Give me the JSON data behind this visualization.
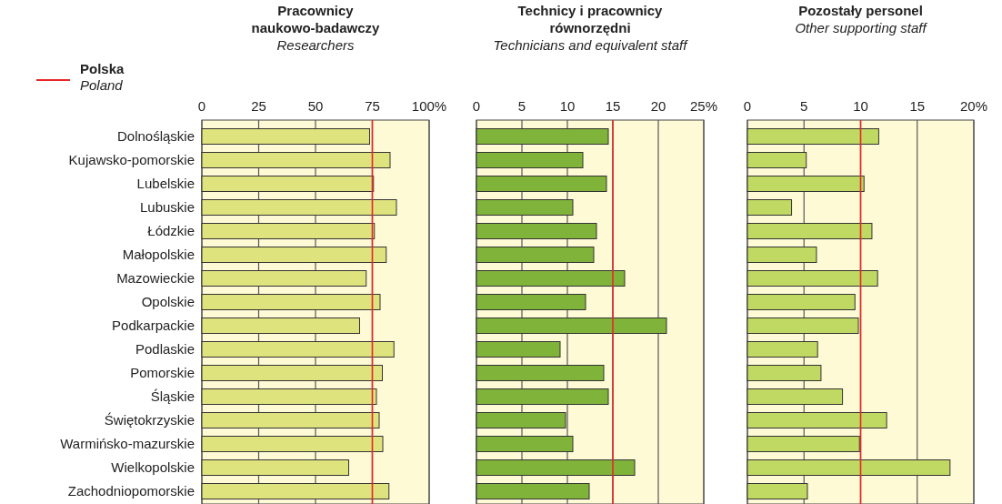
{
  "chart_data": [
    {
      "type": "bar",
      "orientation": "horizontal",
      "title": "Pracownicy naukowo-badawczy",
      "subtitle": "Researchers",
      "categories": [
        "Dolnośląskie",
        "Kujawsko-pomorskie",
        "Lubelskie",
        "Lubuskie",
        "Łódzkie",
        "Małopolskie",
        "Mazowieckie",
        "Opolskie",
        "Podkarpackie",
        "Podlaskie",
        "Pomorskie",
        "Śląskie",
        "Świętokrzyskie",
        "Warmińsko-mazurskie",
        "Wielkopolskie",
        "Zachodniopomorskie"
      ],
      "values": [
        73.8,
        82.8,
        75.5,
        85.6,
        75.9,
        81.1,
        72.3,
        78.4,
        69.4,
        84.5,
        79.4,
        76.8,
        78.0,
        79.6,
        64.6,
        82.3
      ],
      "color": "#dfe37e",
      "xlim": [
        0,
        100
      ],
      "xticks": [
        0,
        25,
        50,
        75,
        {
          "value": 100,
          "label": "100%"
        }
      ],
      "grid": "x",
      "ref_lines": [
        {
          "axis": "x",
          "value": 75,
          "label": "Polska\nPoland",
          "color": "#e8262a"
        }
      ],
      "legend": "top left"
    },
    {
      "type": "bar",
      "orientation": "horizontal",
      "title": "Technicy i pracownicy równorzędni",
      "subtitle": "Technicians and equivalent staff",
      "categories": [
        "Dolnośląskie",
        "Kujawsko-pomorskie",
        "Lubelskie",
        "Lubuskie",
        "Łódzkie",
        "Małopolskie",
        "Mazowieckie",
        "Opolskie",
        "Podkarpackie",
        "Podlaskie",
        "Pomorskie",
        "Śląskie",
        "Świętokrzyskie",
        "Warmińsko-mazurskie",
        "Wielkopolskie",
        "Zachodniopomorskie"
      ],
      "values": [
        14.5,
        11.7,
        14.3,
        10.6,
        13.2,
        12.9,
        16.3,
        12.0,
        20.9,
        9.2,
        14.0,
        14.5,
        9.8,
        10.6,
        17.4,
        12.4
      ],
      "color": "#80b33a",
      "xlim": [
        0,
        25
      ],
      "xticks": [
        0,
        5,
        10,
        15,
        20,
        {
          "value": 25,
          "label": "25%"
        }
      ],
      "grid": "x",
      "tick_labels": "x",
      "ref_lines": [
        {
          "axis": "x",
          "value": 15,
          "color": "#e8262a"
        }
      ]
    },
    {
      "type": "bar",
      "orientation": "horizontal",
      "title": "Pozostały personel",
      "subtitle": "Other supporting staff",
      "categories": [
        "Dolnośląskie",
        "Kujawsko-pomorskie",
        "Lubelskie",
        "Lubuskie",
        "Łódzkie",
        "Małopolskie",
        "Mazowieckie",
        "Opolskie",
        "Podkarpackie",
        "Podlaskie",
        "Pomorskie",
        "Śląskie",
        "Świętokrzyskie",
        "Warmińsko-mazurskie",
        "Wielkopolskie",
        "Zachodniopomorskie"
      ],
      "values": [
        11.6,
        5.2,
        10.3,
        3.9,
        11.0,
        6.1,
        11.5,
        9.5,
        9.8,
        6.2,
        6.5,
        8.4,
        12.3,
        9.9,
        17.9,
        5.3
      ],
      "color": "#bfd963",
      "xlim": [
        0,
        20
      ],
      "xticks": [
        0,
        5,
        10,
        15,
        {
          "value": 20,
          "label": "20%"
        }
      ],
      "grid": "x",
      "tick_labels": "x",
      "ref_lines": [
        {
          "axis": "x",
          "value": 10,
          "color": "#e8262a"
        }
      ]
    }
  ]
}
